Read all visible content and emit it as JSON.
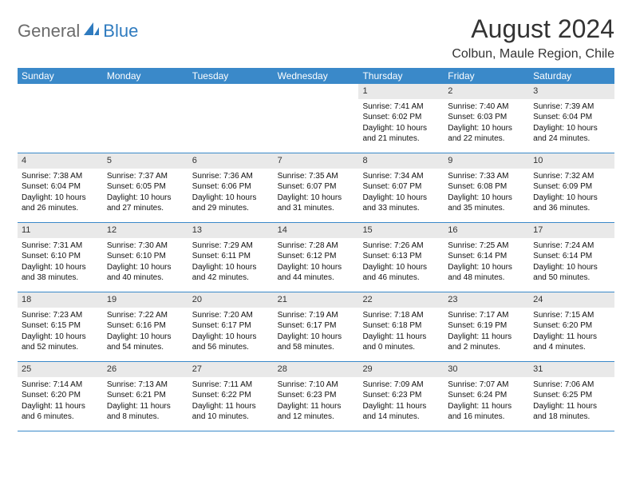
{
  "logo": {
    "text1": "General",
    "text2": "Blue"
  },
  "title": "August 2024",
  "location": "Colbun, Maule Region, Chile",
  "colors": {
    "header_bg": "#3a89c9",
    "header_text": "#ffffff",
    "daynum_bg": "#e9e9e9",
    "row_border": "#3a89c9",
    "logo_gray": "#6b6b6b",
    "logo_blue": "#2f7bbf"
  },
  "weekdays": [
    "Sunday",
    "Monday",
    "Tuesday",
    "Wednesday",
    "Thursday",
    "Friday",
    "Saturday"
  ],
  "weeks": [
    [
      {
        "empty": true
      },
      {
        "empty": true
      },
      {
        "empty": true
      },
      {
        "empty": true
      },
      {
        "num": "1",
        "sunrise": "Sunrise: 7:41 AM",
        "sunset": "Sunset: 6:02 PM",
        "daylight": "Daylight: 10 hours and 21 minutes."
      },
      {
        "num": "2",
        "sunrise": "Sunrise: 7:40 AM",
        "sunset": "Sunset: 6:03 PM",
        "daylight": "Daylight: 10 hours and 22 minutes."
      },
      {
        "num": "3",
        "sunrise": "Sunrise: 7:39 AM",
        "sunset": "Sunset: 6:04 PM",
        "daylight": "Daylight: 10 hours and 24 minutes."
      }
    ],
    [
      {
        "num": "4",
        "sunrise": "Sunrise: 7:38 AM",
        "sunset": "Sunset: 6:04 PM",
        "daylight": "Daylight: 10 hours and 26 minutes."
      },
      {
        "num": "5",
        "sunrise": "Sunrise: 7:37 AM",
        "sunset": "Sunset: 6:05 PM",
        "daylight": "Daylight: 10 hours and 27 minutes."
      },
      {
        "num": "6",
        "sunrise": "Sunrise: 7:36 AM",
        "sunset": "Sunset: 6:06 PM",
        "daylight": "Daylight: 10 hours and 29 minutes."
      },
      {
        "num": "7",
        "sunrise": "Sunrise: 7:35 AM",
        "sunset": "Sunset: 6:07 PM",
        "daylight": "Daylight: 10 hours and 31 minutes."
      },
      {
        "num": "8",
        "sunrise": "Sunrise: 7:34 AM",
        "sunset": "Sunset: 6:07 PM",
        "daylight": "Daylight: 10 hours and 33 minutes."
      },
      {
        "num": "9",
        "sunrise": "Sunrise: 7:33 AM",
        "sunset": "Sunset: 6:08 PM",
        "daylight": "Daylight: 10 hours and 35 minutes."
      },
      {
        "num": "10",
        "sunrise": "Sunrise: 7:32 AM",
        "sunset": "Sunset: 6:09 PM",
        "daylight": "Daylight: 10 hours and 36 minutes."
      }
    ],
    [
      {
        "num": "11",
        "sunrise": "Sunrise: 7:31 AM",
        "sunset": "Sunset: 6:10 PM",
        "daylight": "Daylight: 10 hours and 38 minutes."
      },
      {
        "num": "12",
        "sunrise": "Sunrise: 7:30 AM",
        "sunset": "Sunset: 6:10 PM",
        "daylight": "Daylight: 10 hours and 40 minutes."
      },
      {
        "num": "13",
        "sunrise": "Sunrise: 7:29 AM",
        "sunset": "Sunset: 6:11 PM",
        "daylight": "Daylight: 10 hours and 42 minutes."
      },
      {
        "num": "14",
        "sunrise": "Sunrise: 7:28 AM",
        "sunset": "Sunset: 6:12 PM",
        "daylight": "Daylight: 10 hours and 44 minutes."
      },
      {
        "num": "15",
        "sunrise": "Sunrise: 7:26 AM",
        "sunset": "Sunset: 6:13 PM",
        "daylight": "Daylight: 10 hours and 46 minutes."
      },
      {
        "num": "16",
        "sunrise": "Sunrise: 7:25 AM",
        "sunset": "Sunset: 6:14 PM",
        "daylight": "Daylight: 10 hours and 48 minutes."
      },
      {
        "num": "17",
        "sunrise": "Sunrise: 7:24 AM",
        "sunset": "Sunset: 6:14 PM",
        "daylight": "Daylight: 10 hours and 50 minutes."
      }
    ],
    [
      {
        "num": "18",
        "sunrise": "Sunrise: 7:23 AM",
        "sunset": "Sunset: 6:15 PM",
        "daylight": "Daylight: 10 hours and 52 minutes."
      },
      {
        "num": "19",
        "sunrise": "Sunrise: 7:22 AM",
        "sunset": "Sunset: 6:16 PM",
        "daylight": "Daylight: 10 hours and 54 minutes."
      },
      {
        "num": "20",
        "sunrise": "Sunrise: 7:20 AM",
        "sunset": "Sunset: 6:17 PM",
        "daylight": "Daylight: 10 hours and 56 minutes."
      },
      {
        "num": "21",
        "sunrise": "Sunrise: 7:19 AM",
        "sunset": "Sunset: 6:17 PM",
        "daylight": "Daylight: 10 hours and 58 minutes."
      },
      {
        "num": "22",
        "sunrise": "Sunrise: 7:18 AM",
        "sunset": "Sunset: 6:18 PM",
        "daylight": "Daylight: 11 hours and 0 minutes."
      },
      {
        "num": "23",
        "sunrise": "Sunrise: 7:17 AM",
        "sunset": "Sunset: 6:19 PM",
        "daylight": "Daylight: 11 hours and 2 minutes."
      },
      {
        "num": "24",
        "sunrise": "Sunrise: 7:15 AM",
        "sunset": "Sunset: 6:20 PM",
        "daylight": "Daylight: 11 hours and 4 minutes."
      }
    ],
    [
      {
        "num": "25",
        "sunrise": "Sunrise: 7:14 AM",
        "sunset": "Sunset: 6:20 PM",
        "daylight": "Daylight: 11 hours and 6 minutes."
      },
      {
        "num": "26",
        "sunrise": "Sunrise: 7:13 AM",
        "sunset": "Sunset: 6:21 PM",
        "daylight": "Daylight: 11 hours and 8 minutes."
      },
      {
        "num": "27",
        "sunrise": "Sunrise: 7:11 AM",
        "sunset": "Sunset: 6:22 PM",
        "daylight": "Daylight: 11 hours and 10 minutes."
      },
      {
        "num": "28",
        "sunrise": "Sunrise: 7:10 AM",
        "sunset": "Sunset: 6:23 PM",
        "daylight": "Daylight: 11 hours and 12 minutes."
      },
      {
        "num": "29",
        "sunrise": "Sunrise: 7:09 AM",
        "sunset": "Sunset: 6:23 PM",
        "daylight": "Daylight: 11 hours and 14 minutes."
      },
      {
        "num": "30",
        "sunrise": "Sunrise: 7:07 AM",
        "sunset": "Sunset: 6:24 PM",
        "daylight": "Daylight: 11 hours and 16 minutes."
      },
      {
        "num": "31",
        "sunrise": "Sunrise: 7:06 AM",
        "sunset": "Sunset: 6:25 PM",
        "daylight": "Daylight: 11 hours and 18 minutes."
      }
    ]
  ]
}
